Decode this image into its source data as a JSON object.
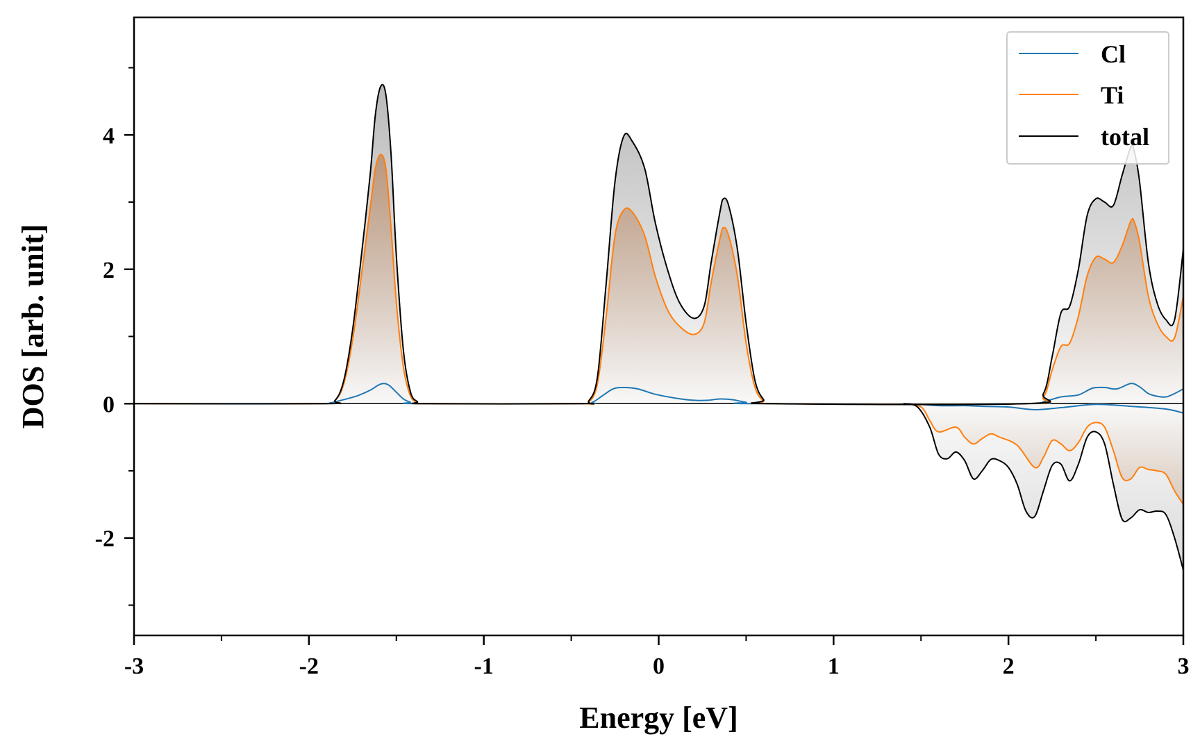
{
  "chart_data": {
    "type": "line",
    "title": "",
    "xlabel": "Energy [eV]",
    "ylabel": "DOS [arb. unit]",
    "xlim": [
      -3,
      3
    ],
    "ylim": [
      -3.45,
      5.75
    ],
    "x_major_ticks": [
      -3,
      -2,
      -1,
      0,
      1,
      2,
      3
    ],
    "x_minor_ticks": [
      -2.5,
      -1.5,
      -0.5,
      0.5,
      1.5,
      2.5
    ],
    "x_tick_labels": [
      "-3",
      "-2",
      "-1",
      "0",
      "1",
      "2",
      "3"
    ],
    "y_major_ticks": [
      -2,
      0,
      2,
      4
    ],
    "y_minor_ticks": [
      -3,
      -1,
      1,
      3,
      5
    ],
    "y_tick_labels": [
      "-2",
      "0",
      "2",
      "4"
    ],
    "grid": false,
    "legend": {
      "position": "top-right",
      "entries": [
        "Cl",
        "Ti",
        "total"
      ]
    },
    "series": [
      {
        "name": "Cl",
        "color": "#1f77b4",
        "part": "up",
        "points": [
          [
            -3,
            0
          ],
          [
            -1.95,
            0
          ],
          [
            -1.88,
            0.01
          ],
          [
            -1.8,
            0.06
          ],
          [
            -1.72,
            0.12
          ],
          [
            -1.65,
            0.2
          ],
          [
            -1.6,
            0.28
          ],
          [
            -1.57,
            0.3
          ],
          [
            -1.54,
            0.27
          ],
          [
            -1.5,
            0.17
          ],
          [
            -1.46,
            0.07
          ],
          [
            -1.42,
            0.02
          ],
          [
            -1.38,
            0
          ],
          [
            -0.45,
            0
          ],
          [
            -0.38,
            0.02
          ],
          [
            -0.32,
            0.12
          ],
          [
            -0.26,
            0.22
          ],
          [
            -0.2,
            0.24
          ],
          [
            -0.12,
            0.22
          ],
          [
            -0.02,
            0.14
          ],
          [
            0.1,
            0.08
          ],
          [
            0.2,
            0.05
          ],
          [
            0.28,
            0.05
          ],
          [
            0.35,
            0.07
          ],
          [
            0.42,
            0.06
          ],
          [
            0.5,
            0.02
          ],
          [
            0.56,
            0
          ],
          [
            2.1,
            0
          ],
          [
            2.2,
            0.03
          ],
          [
            2.3,
            0.1
          ],
          [
            2.4,
            0.13
          ],
          [
            2.48,
            0.23
          ],
          [
            2.55,
            0.24
          ],
          [
            2.62,
            0.22
          ],
          [
            2.7,
            0.3
          ],
          [
            2.75,
            0.25
          ],
          [
            2.8,
            0.15
          ],
          [
            2.85,
            0.11
          ],
          [
            2.9,
            0.1
          ],
          [
            2.95,
            0.15
          ],
          [
            3,
            0.22
          ]
        ]
      },
      {
        "name": "Ti",
        "color": "#ff7f0e",
        "part": "up",
        "points": [
          [
            -3,
            0
          ],
          [
            -1.92,
            0
          ],
          [
            -1.85,
            0.05
          ],
          [
            -1.8,
            0.3
          ],
          [
            -1.75,
            0.95
          ],
          [
            -1.7,
            1.9
          ],
          [
            -1.65,
            2.9
          ],
          [
            -1.62,
            3.5
          ],
          [
            -1.59,
            3.71
          ],
          [
            -1.56,
            3.5
          ],
          [
            -1.53,
            2.6
          ],
          [
            -1.5,
            1.5
          ],
          [
            -1.46,
            0.55
          ],
          [
            -1.42,
            0.12
          ],
          [
            -1.38,
            0.02
          ],
          [
            -1.33,
            0
          ],
          [
            -0.45,
            0
          ],
          [
            -0.4,
            0.02
          ],
          [
            -0.35,
            0.3
          ],
          [
            -0.3,
            1.3
          ],
          [
            -0.25,
            2.5
          ],
          [
            -0.2,
            2.88
          ],
          [
            -0.15,
            2.85
          ],
          [
            -0.08,
            2.5
          ],
          [
            -0.02,
            1.9
          ],
          [
            0.05,
            1.4
          ],
          [
            0.12,
            1.15
          ],
          [
            0.2,
            1.03
          ],
          [
            0.26,
            1.2
          ],
          [
            0.3,
            1.8
          ],
          [
            0.35,
            2.45
          ],
          [
            0.37,
            2.62
          ],
          [
            0.4,
            2.5
          ],
          [
            0.45,
            1.9
          ],
          [
            0.5,
            0.9
          ],
          [
            0.55,
            0.25
          ],
          [
            0.6,
            0.04
          ],
          [
            0.65,
            0
          ],
          [
            2.1,
            0
          ],
          [
            2.2,
            0.1
          ],
          [
            2.25,
            0.5
          ],
          [
            2.3,
            0.85
          ],
          [
            2.35,
            0.9
          ],
          [
            2.4,
            1.3
          ],
          [
            2.45,
            1.9
          ],
          [
            2.5,
            2.18
          ],
          [
            2.55,
            2.15
          ],
          [
            2.6,
            2.1
          ],
          [
            2.65,
            2.35
          ],
          [
            2.7,
            2.72
          ],
          [
            2.72,
            2.7
          ],
          [
            2.75,
            2.4
          ],
          [
            2.8,
            1.6
          ],
          [
            2.85,
            1.2
          ],
          [
            2.9,
            1.0
          ],
          [
            2.95,
            0.98
          ],
          [
            3,
            1.6
          ]
        ]
      },
      {
        "name": "total",
        "color": "#000000",
        "part": "up",
        "points": [
          [
            -3,
            0
          ],
          [
            -1.92,
            0
          ],
          [
            -1.85,
            0.05
          ],
          [
            -1.8,
            0.35
          ],
          [
            -1.75,
            1.1
          ],
          [
            -1.7,
            2.2
          ],
          [
            -1.65,
            3.4
          ],
          [
            -1.62,
            4.3
          ],
          [
            -1.59,
            4.72
          ],
          [
            -1.56,
            4.6
          ],
          [
            -1.53,
            3.7
          ],
          [
            -1.5,
            2.2
          ],
          [
            -1.46,
            0.8
          ],
          [
            -1.42,
            0.18
          ],
          [
            -1.38,
            0.03
          ],
          [
            -1.33,
            0
          ],
          [
            -0.45,
            0
          ],
          [
            -0.4,
            0.04
          ],
          [
            -0.35,
            0.4
          ],
          [
            -0.3,
            1.8
          ],
          [
            -0.25,
            3.3
          ],
          [
            -0.2,
            3.98
          ],
          [
            -0.15,
            3.9
          ],
          [
            -0.08,
            3.5
          ],
          [
            -0.02,
            2.7
          ],
          [
            0.05,
            2.0
          ],
          [
            0.12,
            1.5
          ],
          [
            0.2,
            1.27
          ],
          [
            0.26,
            1.45
          ],
          [
            0.3,
            2.1
          ],
          [
            0.35,
            2.85
          ],
          [
            0.37,
            3.05
          ],
          [
            0.4,
            2.95
          ],
          [
            0.45,
            2.3
          ],
          [
            0.5,
            1.2
          ],
          [
            0.55,
            0.35
          ],
          [
            0.6,
            0.06
          ],
          [
            0.65,
            0
          ],
          [
            2.1,
            0
          ],
          [
            2.2,
            0.15
          ],
          [
            2.25,
            0.7
          ],
          [
            2.3,
            1.35
          ],
          [
            2.35,
            1.45
          ],
          [
            2.4,
            2.0
          ],
          [
            2.45,
            2.8
          ],
          [
            2.5,
            3.05
          ],
          [
            2.55,
            3.0
          ],
          [
            2.6,
            2.95
          ],
          [
            2.65,
            3.4
          ],
          [
            2.7,
            3.82
          ],
          [
            2.72,
            3.75
          ],
          [
            2.75,
            3.3
          ],
          [
            2.8,
            2.1
          ],
          [
            2.85,
            1.5
          ],
          [
            2.9,
            1.25
          ],
          [
            2.95,
            1.25
          ],
          [
            3,
            2.3
          ]
        ]
      },
      {
        "name": "Cl",
        "color": "#1f77b4",
        "part": "down",
        "points": [
          [
            1.4,
            0
          ],
          [
            1.5,
            -0.01
          ],
          [
            1.6,
            -0.03
          ],
          [
            1.75,
            -0.03
          ],
          [
            1.85,
            -0.04
          ],
          [
            2.0,
            -0.05
          ],
          [
            2.15,
            -0.09
          ],
          [
            2.3,
            -0.06
          ],
          [
            2.5,
            -0.01
          ],
          [
            2.7,
            -0.04
          ],
          [
            2.9,
            -0.08
          ],
          [
            3,
            -0.14
          ]
        ]
      },
      {
        "name": "Ti",
        "color": "#ff7f0e",
        "part": "down",
        "points": [
          [
            1.4,
            0
          ],
          [
            1.5,
            -0.05
          ],
          [
            1.55,
            -0.25
          ],
          [
            1.6,
            -0.42
          ],
          [
            1.7,
            -0.35
          ],
          [
            1.75,
            -0.5
          ],
          [
            1.8,
            -0.6
          ],
          [
            1.85,
            -0.52
          ],
          [
            1.9,
            -0.45
          ],
          [
            1.95,
            -0.5
          ],
          [
            2.05,
            -0.62
          ],
          [
            2.15,
            -0.95
          ],
          [
            2.2,
            -0.8
          ],
          [
            2.25,
            -0.55
          ],
          [
            2.3,
            -0.6
          ],
          [
            2.35,
            -0.7
          ],
          [
            2.4,
            -0.58
          ],
          [
            2.45,
            -0.35
          ],
          [
            2.5,
            -0.28
          ],
          [
            2.55,
            -0.35
          ],
          [
            2.6,
            -0.7
          ],
          [
            2.65,
            -1.1
          ],
          [
            2.7,
            -1.12
          ],
          [
            2.75,
            -0.95
          ],
          [
            2.8,
            -0.98
          ],
          [
            2.85,
            -1.0
          ],
          [
            2.9,
            -1.05
          ],
          [
            2.95,
            -1.3
          ],
          [
            3,
            -1.5
          ]
        ]
      },
      {
        "name": "total",
        "color": "#000000",
        "part": "down",
        "points": [
          [
            1.4,
            0
          ],
          [
            1.48,
            -0.05
          ],
          [
            1.55,
            -0.35
          ],
          [
            1.6,
            -0.75
          ],
          [
            1.65,
            -0.82
          ],
          [
            1.7,
            -0.72
          ],
          [
            1.75,
            -0.85
          ],
          [
            1.8,
            -1.12
          ],
          [
            1.85,
            -1.0
          ],
          [
            1.9,
            -0.83
          ],
          [
            1.95,
            -0.85
          ],
          [
            2.0,
            -0.95
          ],
          [
            2.05,
            -1.2
          ],
          [
            2.1,
            -1.6
          ],
          [
            2.15,
            -1.68
          ],
          [
            2.2,
            -1.3
          ],
          [
            2.25,
            -0.92
          ],
          [
            2.3,
            -0.9
          ],
          [
            2.35,
            -1.15
          ],
          [
            2.4,
            -0.9
          ],
          [
            2.45,
            -0.5
          ],
          [
            2.5,
            -0.42
          ],
          [
            2.55,
            -0.6
          ],
          [
            2.6,
            -1.2
          ],
          [
            2.65,
            -1.72
          ],
          [
            2.7,
            -1.7
          ],
          [
            2.75,
            -1.58
          ],
          [
            2.8,
            -1.62
          ],
          [
            2.85,
            -1.6
          ],
          [
            2.9,
            -1.65
          ],
          [
            2.95,
            -2.0
          ],
          [
            3,
            -2.48
          ]
        ]
      }
    ]
  }
}
